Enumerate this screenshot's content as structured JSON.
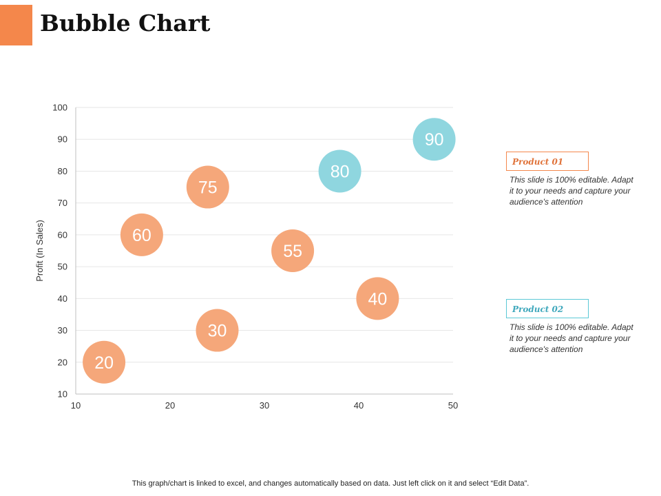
{
  "slide": {
    "title": "Bubble Chart",
    "accent_color": "#F4874B",
    "footer_note": "This graph/chart is linked to excel,  and changes automatically based on data. Just left click on it and select “Edit Data”."
  },
  "legend": [
    {
      "name": "Product 01",
      "description": "This slide is 100% editable. Adapt it to your needs and capture your audience's attention",
      "color": "#F4874B",
      "text_color": "#E0733A"
    },
    {
      "name": "Product 02",
      "description": "This slide is 100% editable. Adapt it to your needs and capture your audience's attention",
      "color": "#5BC8D6",
      "text_color": "#3FA8BC"
    }
  ],
  "chart_data": {
    "type": "scatter",
    "variant": "bubble",
    "title": "",
    "xlabel": "",
    "ylabel": "Profit  (In Sales)",
    "xlim": [
      10,
      50
    ],
    "ylim": [
      10,
      100
    ],
    "x_ticks": [
      10,
      20,
      30,
      40,
      50
    ],
    "y_ticks": [
      10,
      20,
      30,
      40,
      50,
      60,
      70,
      80,
      90,
      100
    ],
    "grid": true,
    "legend_position": "right",
    "series": [
      {
        "name": "Product 01",
        "color": "#F5A77A",
        "points": [
          {
            "x": 13,
            "y": 20,
            "label": "20"
          },
          {
            "x": 17,
            "y": 60,
            "label": "60"
          },
          {
            "x": 24,
            "y": 75,
            "label": "75"
          },
          {
            "x": 25,
            "y": 30,
            "label": "30"
          },
          {
            "x": 33,
            "y": 55,
            "label": "55"
          },
          {
            "x": 42,
            "y": 40,
            "label": "40"
          }
        ]
      },
      {
        "name": "Product 02",
        "color": "#8FD6DF",
        "points": [
          {
            "x": 38,
            "y": 80,
            "label": "80"
          },
          {
            "x": 48,
            "y": 90,
            "label": "90"
          }
        ]
      }
    ]
  }
}
